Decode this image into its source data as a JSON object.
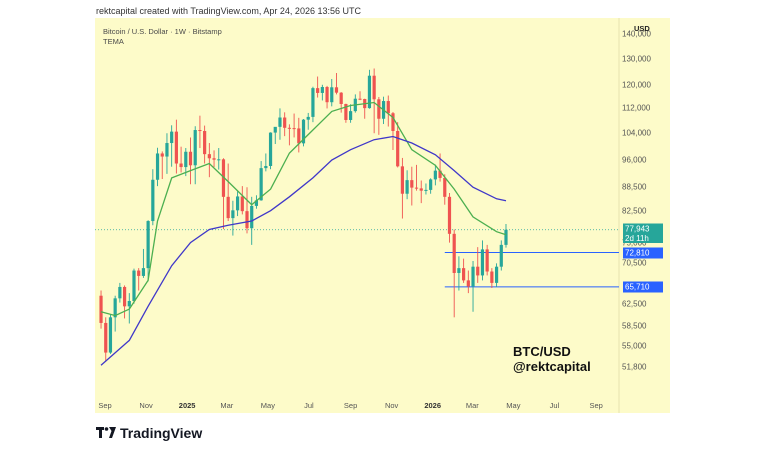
{
  "header": {
    "caption": "rektcapital created with TradingView.com, Apr 24, 2026 13:56 UTC"
  },
  "chart": {
    "symbol_title": "Bitcoin / U.S. Dollar · 1W · Bitstamp",
    "study_title": "TEMA",
    "currency": "USD",
    "watermark_line1": "BTC/USD",
    "watermark_line2": "@rektcapital",
    "colors": {
      "background": "#fdfbc9",
      "up": "#26a69a",
      "down": "#ef5350",
      "ema_fast": "#4caf50",
      "ema_slow": "#3f37c9",
      "level": "#2962ff"
    },
    "y_tick_labels": [
      "140,000",
      "130,000",
      "120,000",
      "112,000",
      "104,000",
      "96,000",
      "88,500",
      "82,500",
      "75,000",
      "70,500",
      "62,500",
      "58,500",
      "55,000",
      "51,800"
    ],
    "x_tick_labels": [
      "Sep",
      "Nov",
      "2025",
      "Mar",
      "May",
      "Jul",
      "Sep",
      "Nov",
      "2026",
      "Mar",
      "May",
      "Jul",
      "Sep"
    ],
    "price_badge": {
      "value": "77,943",
      "countdown": "2d 11h"
    },
    "levels": [
      {
        "label": "72,810",
        "value": 72810
      },
      {
        "label": "65,710",
        "value": 65710
      }
    ]
  },
  "chart_data": {
    "type": "line",
    "title": "Bitcoin / U.S. Dollar · 1W · Bitstamp",
    "xlabel": "",
    "ylabel": "USD",
    "scale": "log",
    "ylim": [
      48000,
      145000
    ],
    "xlim": [
      "2024-08-20",
      "2026-10-05"
    ],
    "candles": [
      {
        "t": "2024-08-26",
        "o": 64000,
        "h": 65000,
        "l": 58000,
        "c": 59000
      },
      {
        "t": "2024-09-02",
        "o": 59000,
        "h": 60000,
        "l": 52550,
        "c": 54000
      },
      {
        "t": "2024-09-09",
        "o": 54000,
        "h": 60500,
        "l": 53800,
        "c": 60000
      },
      {
        "t": "2024-09-16",
        "o": 60000,
        "h": 64000,
        "l": 57500,
        "c": 63500
      },
      {
        "t": "2024-09-23",
        "o": 63500,
        "h": 66500,
        "l": 62700,
        "c": 65700
      },
      {
        "t": "2024-09-30",
        "o": 65700,
        "h": 66000,
        "l": 59800,
        "c": 62000
      },
      {
        "t": "2024-10-07",
        "o": 62000,
        "h": 64500,
        "l": 58900,
        "c": 63000
      },
      {
        "t": "2024-10-14",
        "o": 63000,
        "h": 69400,
        "l": 62500,
        "c": 69000
      },
      {
        "t": "2024-10-21",
        "o": 69000,
        "h": 69500,
        "l": 65000,
        "c": 67900
      },
      {
        "t": "2024-10-28",
        "o": 67900,
        "h": 73600,
        "l": 67500,
        "c": 69500
      },
      {
        "t": "2024-11-04",
        "o": 69500,
        "h": 80200,
        "l": 66800,
        "c": 80000
      },
      {
        "t": "2024-11-11",
        "o": 80000,
        "h": 93400,
        "l": 79000,
        "c": 90500
      },
      {
        "t": "2024-11-18",
        "o": 90500,
        "h": 99600,
        "l": 88800,
        "c": 97900
      },
      {
        "t": "2024-11-25",
        "o": 97900,
        "h": 98500,
        "l": 90700,
        "c": 97000
      },
      {
        "t": "2024-12-02",
        "o": 97000,
        "h": 104000,
        "l": 92100,
        "c": 101000
      },
      {
        "t": "2024-12-09",
        "o": 101000,
        "h": 106500,
        "l": 94100,
        "c": 104500
      },
      {
        "t": "2024-12-16",
        "o": 104500,
        "h": 108300,
        "l": 92200,
        "c": 95000
      },
      {
        "t": "2024-12-23",
        "o": 95000,
        "h": 99900,
        "l": 92500,
        "c": 94000
      },
      {
        "t": "2024-12-30",
        "o": 94000,
        "h": 99500,
        "l": 91500,
        "c": 98400
      },
      {
        "t": "2025-01-06",
        "o": 98400,
        "h": 102700,
        "l": 89300,
        "c": 94500
      },
      {
        "t": "2025-01-13",
        "o": 94500,
        "h": 106200,
        "l": 89300,
        "c": 105000
      },
      {
        "t": "2025-01-20",
        "o": 105000,
        "h": 109600,
        "l": 99500,
        "c": 104700
      },
      {
        "t": "2025-01-27",
        "o": 104700,
        "h": 106400,
        "l": 95000,
        "c": 97700
      },
      {
        "t": "2025-02-03",
        "o": 97700,
        "h": 101000,
        "l": 91200,
        "c": 96500
      },
      {
        "t": "2025-02-10",
        "o": 96500,
        "h": 98800,
        "l": 94000,
        "c": 96100
      },
      {
        "t": "2025-02-17",
        "o": 96100,
        "h": 99500,
        "l": 93300,
        "c": 96200
      },
      {
        "t": "2025-02-24",
        "o": 96200,
        "h": 96500,
        "l": 78100,
        "c": 86000
      },
      {
        "t": "2025-03-03",
        "o": 86000,
        "h": 95000,
        "l": 80000,
        "c": 80700
      },
      {
        "t": "2025-03-10",
        "o": 80700,
        "h": 85000,
        "l": 76600,
        "c": 82600
      },
      {
        "t": "2025-03-17",
        "o": 82600,
        "h": 87400,
        "l": 81200,
        "c": 86100
      },
      {
        "t": "2025-03-24",
        "o": 86100,
        "h": 88800,
        "l": 81600,
        "c": 82400
      },
      {
        "t": "2025-03-31",
        "o": 82400,
        "h": 88500,
        "l": 77100,
        "c": 78300
      },
      {
        "t": "2025-04-07",
        "o": 78300,
        "h": 86000,
        "l": 74500,
        "c": 83700
      },
      {
        "t": "2025-04-14",
        "o": 83700,
        "h": 86400,
        "l": 83000,
        "c": 85100
      },
      {
        "t": "2025-04-21",
        "o": 85100,
        "h": 95700,
        "l": 85000,
        "c": 93700
      },
      {
        "t": "2025-04-28",
        "o": 93700,
        "h": 97900,
        "l": 92800,
        "c": 94300
      },
      {
        "t": "2025-05-05",
        "o": 94300,
        "h": 104300,
        "l": 93400,
        "c": 104200
      },
      {
        "t": "2025-05-12",
        "o": 104200,
        "h": 105800,
        "l": 100700,
        "c": 106000
      },
      {
        "t": "2025-05-19",
        "o": 106000,
        "h": 112000,
        "l": 102000,
        "c": 109000
      },
      {
        "t": "2025-05-26",
        "o": 109000,
        "h": 110700,
        "l": 103100,
        "c": 105700
      },
      {
        "t": "2025-06-02",
        "o": 105700,
        "h": 106800,
        "l": 100300,
        "c": 105600
      },
      {
        "t": "2025-06-09",
        "o": 105600,
        "h": 110300,
        "l": 102700,
        "c": 105500
      },
      {
        "t": "2025-06-16",
        "o": 105500,
        "h": 108900,
        "l": 98200,
        "c": 100900
      },
      {
        "t": "2025-06-23",
        "o": 100900,
        "h": 108500,
        "l": 100000,
        "c": 108300
      },
      {
        "t": "2025-06-30",
        "o": 108300,
        "h": 110500,
        "l": 105100,
        "c": 109200
      },
      {
        "t": "2025-07-07",
        "o": 109200,
        "h": 119500,
        "l": 107500,
        "c": 119000
      },
      {
        "t": "2025-07-14",
        "o": 119000,
        "h": 123200,
        "l": 115700,
        "c": 117300
      },
      {
        "t": "2025-07-21",
        "o": 117300,
        "h": 120200,
        "l": 114700,
        "c": 119400
      },
      {
        "t": "2025-07-28",
        "o": 119400,
        "h": 119800,
        "l": 112000,
        "c": 114100
      },
      {
        "t": "2025-08-04",
        "o": 114100,
        "h": 122300,
        "l": 112700,
        "c": 119300
      },
      {
        "t": "2025-08-11",
        "o": 119300,
        "h": 124500,
        "l": 116800,
        "c": 117400
      },
      {
        "t": "2025-08-18",
        "o": 117400,
        "h": 117600,
        "l": 110600,
        "c": 113500
      },
      {
        "t": "2025-08-25",
        "o": 113500,
        "h": 113600,
        "l": 107300,
        "c": 108200
      },
      {
        "t": "2025-09-01",
        "o": 108200,
        "h": 113400,
        "l": 107300,
        "c": 111100
      },
      {
        "t": "2025-09-08",
        "o": 111100,
        "h": 116800,
        "l": 110600,
        "c": 115300
      },
      {
        "t": "2025-09-15",
        "o": 115300,
        "h": 117900,
        "l": 114800,
        "c": 115200
      },
      {
        "t": "2025-09-22",
        "o": 115200,
        "h": 115300,
        "l": 108600,
        "c": 112100
      },
      {
        "t": "2025-09-29",
        "o": 112100,
        "h": 125700,
        "l": 111900,
        "c": 123500
      },
      {
        "t": "2025-10-06",
        "o": 123500,
        "h": 126200,
        "l": 104000,
        "c": 115100
      },
      {
        "t": "2025-10-13",
        "o": 115100,
        "h": 115900,
        "l": 103500,
        "c": 108600
      },
      {
        "t": "2025-10-20",
        "o": 108600,
        "h": 116000,
        "l": 106900,
        "c": 114500
      },
      {
        "t": "2025-10-27",
        "o": 114500,
        "h": 116400,
        "l": 106100,
        "c": 110400
      },
      {
        "t": "2025-11-03",
        "o": 110400,
        "h": 110800,
        "l": 98900,
        "c": 104700
      },
      {
        "t": "2025-11-10",
        "o": 104700,
        "h": 107500,
        "l": 93900,
        "c": 94200
      },
      {
        "t": "2025-11-17",
        "o": 94200,
        "h": 96600,
        "l": 80600,
        "c": 86800
      },
      {
        "t": "2025-11-24",
        "o": 86800,
        "h": 93100,
        "l": 85400,
        "c": 90400
      },
      {
        "t": "2025-12-01",
        "o": 90400,
        "h": 94100,
        "l": 83800,
        "c": 88400
      },
      {
        "t": "2025-12-08",
        "o": 88400,
        "h": 94600,
        "l": 87600,
        "c": 88200
      },
      {
        "t": "2025-12-15",
        "o": 88200,
        "h": 90300,
        "l": 84400,
        "c": 87600
      },
      {
        "t": "2025-12-22",
        "o": 87600,
        "h": 89500,
        "l": 86600,
        "c": 87800
      },
      {
        "t": "2025-12-29",
        "o": 87800,
        "h": 90900,
        "l": 86800,
        "c": 90600
      },
      {
        "t": "2026-01-05",
        "o": 90600,
        "h": 94700,
        "l": 89000,
        "c": 93000
      },
      {
        "t": "2026-01-12",
        "o": 93000,
        "h": 97900,
        "l": 90000,
        "c": 91000
      },
      {
        "t": "2026-01-19",
        "o": 91000,
        "h": 92000,
        "l": 84000,
        "c": 86000
      },
      {
        "t": "2026-01-26",
        "o": 86000,
        "h": 87000,
        "l": 75000,
        "c": 77000
      },
      {
        "t": "2026-02-02",
        "o": 77000,
        "h": 78000,
        "l": 60000,
        "c": 68500
      },
      {
        "t": "2026-02-09",
        "o": 68500,
        "h": 72000,
        "l": 65000,
        "c": 69500
      },
      {
        "t": "2026-02-16",
        "o": 69500,
        "h": 71500,
        "l": 66500,
        "c": 67000
      },
      {
        "t": "2026-02-23",
        "o": 67000,
        "h": 69000,
        "l": 64500,
        "c": 65800
      },
      {
        "t": "2026-03-02",
        "o": 65800,
        "h": 71000,
        "l": 61000,
        "c": 69800
      },
      {
        "t": "2026-03-09",
        "o": 69800,
        "h": 74000,
        "l": 66500,
        "c": 68000
      },
      {
        "t": "2026-03-16",
        "o": 68000,
        "h": 75500,
        "l": 67000,
        "c": 73500
      },
      {
        "t": "2026-03-23",
        "o": 73500,
        "h": 74500,
        "l": 68000,
        "c": 68800
      },
      {
        "t": "2026-03-30",
        "o": 68800,
        "h": 69500,
        "l": 65500,
        "c": 66500
      },
      {
        "t": "2026-04-06",
        "o": 66500,
        "h": 70500,
        "l": 65700,
        "c": 69800
      },
      {
        "t": "2026-04-13",
        "o": 69800,
        "h": 75500,
        "l": 69000,
        "c": 74500
      },
      {
        "t": "2026-04-20",
        "o": 74500,
        "h": 79300,
        "l": 73900,
        "c": 77943
      }
    ],
    "series": [
      {
        "name": "TEMA",
        "color": "#4caf50",
        "points": [
          [
            "2024-08-26",
            61000
          ],
          [
            "2024-09-16",
            60300
          ],
          [
            "2024-10-07",
            61500
          ],
          [
            "2024-11-04",
            67000
          ],
          [
            "2024-11-18",
            80000
          ],
          [
            "2024-12-09",
            91000
          ],
          [
            "2025-01-06",
            93000
          ],
          [
            "2025-02-03",
            95000
          ],
          [
            "2025-03-03",
            90000
          ],
          [
            "2025-04-07",
            84000
          ],
          [
            "2025-05-05",
            88000
          ],
          [
            "2025-06-02",
            98000
          ],
          [
            "2025-07-07",
            105000
          ],
          [
            "2025-08-04",
            111000
          ],
          [
            "2025-09-01",
            113000
          ],
          [
            "2025-10-06",
            114000
          ],
          [
            "2025-11-03",
            109000
          ],
          [
            "2025-12-01",
            99000
          ],
          [
            "2026-01-05",
            94500
          ],
          [
            "2026-02-02",
            88000
          ],
          [
            "2026-03-02",
            81000
          ],
          [
            "2026-04-06",
            77500
          ],
          [
            "2026-04-20",
            76800
          ]
        ]
      },
      {
        "color": "#3f37c9",
        "points": [
          [
            "2024-08-26",
            52000
          ],
          [
            "2024-10-07",
            56000
          ],
          [
            "2024-11-04",
            62000
          ],
          [
            "2024-12-09",
            70000
          ],
          [
            "2025-01-06",
            75000
          ],
          [
            "2025-02-03",
            78000
          ],
          [
            "2025-03-03",
            79000
          ],
          [
            "2025-04-07",
            80000
          ],
          [
            "2025-05-05",
            82500
          ],
          [
            "2025-06-02",
            86000
          ],
          [
            "2025-07-07",
            91000
          ],
          [
            "2025-08-04",
            96000
          ],
          [
            "2025-09-01",
            99000
          ],
          [
            "2025-10-06",
            102000
          ],
          [
            "2025-11-03",
            103000
          ],
          [
            "2025-12-01",
            101000
          ],
          [
            "2026-01-05",
            97500
          ],
          [
            "2026-02-02",
            93000
          ],
          [
            "2026-03-02",
            88500
          ],
          [
            "2026-04-06",
            85500
          ],
          [
            "2026-04-20",
            85000
          ]
        ]
      }
    ],
    "current_price": 77943,
    "horizontal_levels": [
      72810,
      65710
    ],
    "grid": false,
    "legend": "top-left"
  }
}
